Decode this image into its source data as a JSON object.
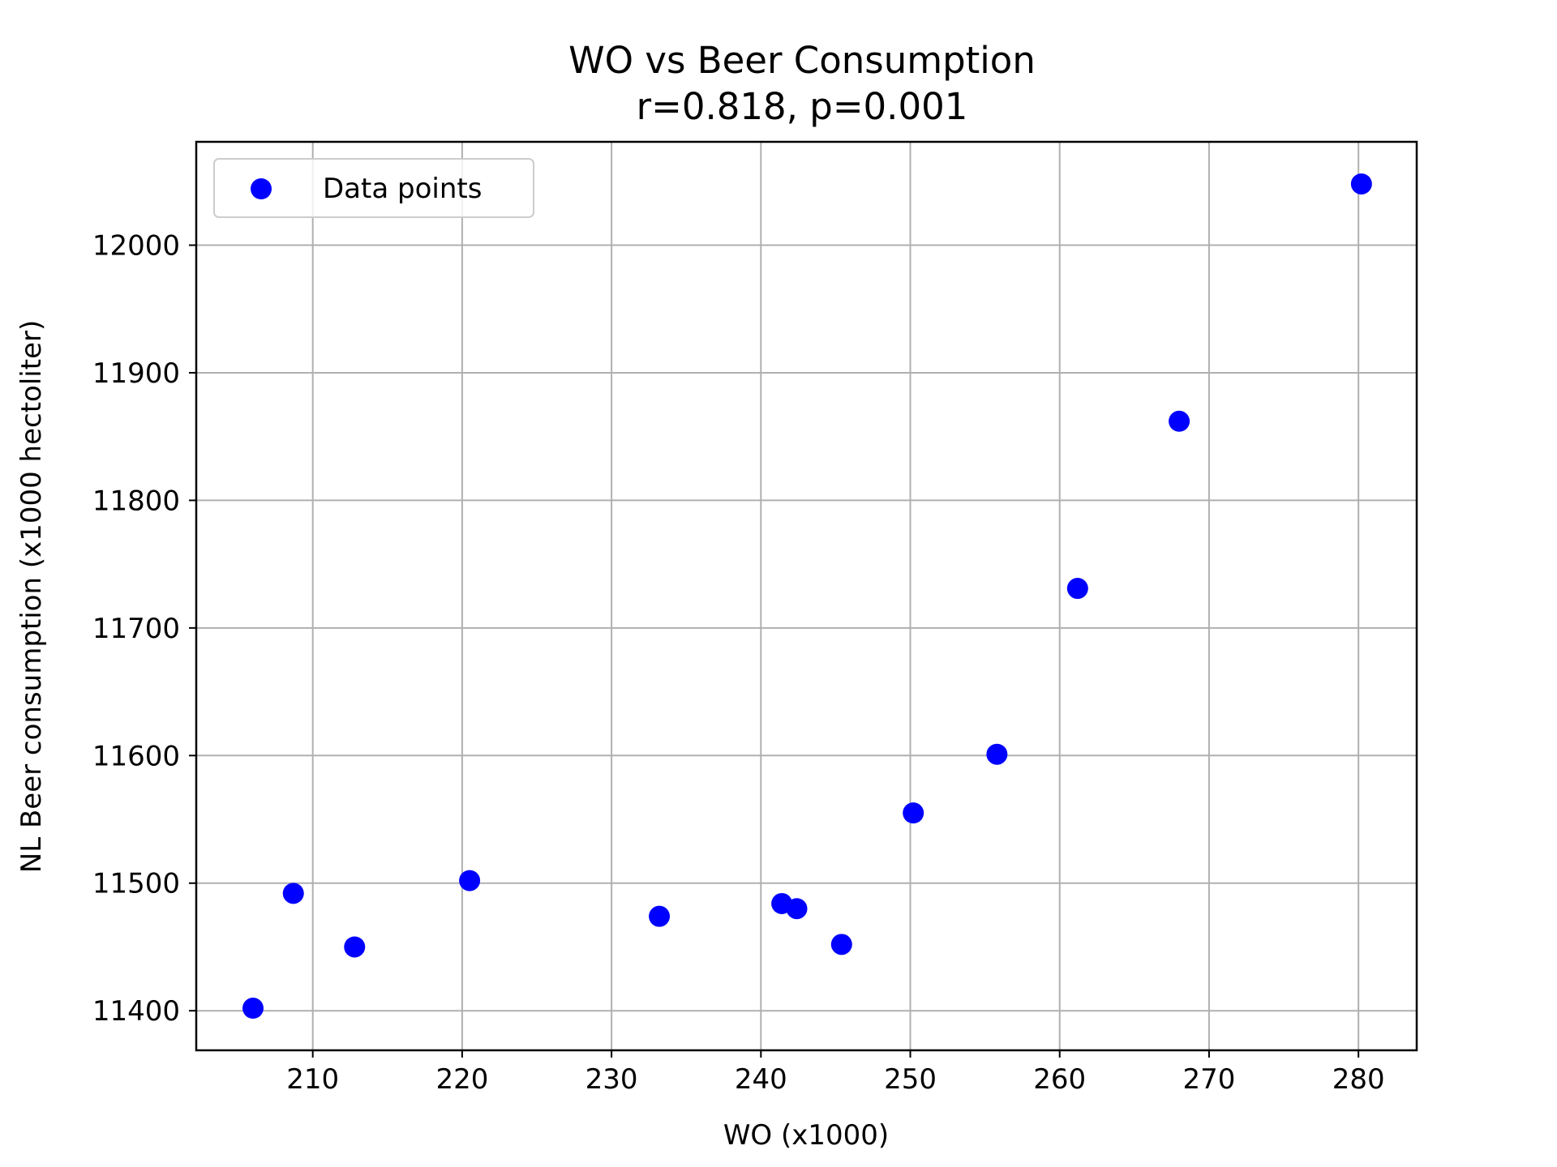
{
  "chart_data": {
    "type": "scatter",
    "title": "WO vs Beer Consumption",
    "subtitle": "r=0.818, p=0.001",
    "xlabel": "WO (x1000)",
    "ylabel": "NL Beer consumption (x1000 hectoliter)",
    "xlim": [
      202.2,
      283.9
    ],
    "ylim": [
      11369,
      12081
    ],
    "xticks": [
      210,
      220,
      230,
      240,
      250,
      260,
      270,
      280
    ],
    "yticks": [
      11400,
      11500,
      11600,
      11700,
      11800,
      11900,
      12000
    ],
    "grid": true,
    "legend": {
      "placement": "top-left",
      "entries": [
        "Data points"
      ]
    },
    "series": [
      {
        "name": "Data points",
        "color": "#0000ff",
        "points": [
          {
            "x": 206.0,
            "y": 11402
          },
          {
            "x": 208.7,
            "y": 11492
          },
          {
            "x": 212.8,
            "y": 11450
          },
          {
            "x": 220.5,
            "y": 11502
          },
          {
            "x": 233.2,
            "y": 11474
          },
          {
            "x": 241.4,
            "y": 11484
          },
          {
            "x": 242.4,
            "y": 11480
          },
          {
            "x": 245.4,
            "y": 11452
          },
          {
            "x": 250.2,
            "y": 11555
          },
          {
            "x": 255.8,
            "y": 11601
          },
          {
            "x": 261.2,
            "y": 11731
          },
          {
            "x": 268.0,
            "y": 11862
          },
          {
            "x": 280.2,
            "y": 12048
          }
        ]
      }
    ]
  }
}
